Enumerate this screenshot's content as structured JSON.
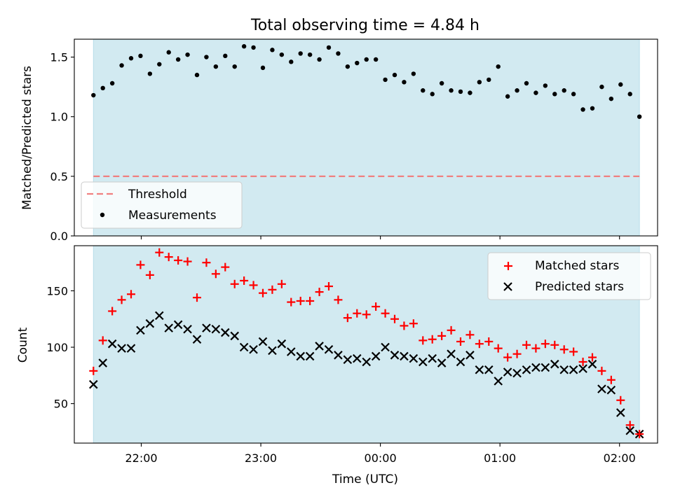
{
  "chart_data": [
    {
      "type": "scatter",
      "title": "Total observing time = 4.84 h",
      "xlabel": "",
      "ylabel": "Matched/Predicted stars",
      "ylim": [
        0,
        1.65
      ],
      "yticks": [
        "0.0",
        "0.5",
        "1.0",
        "1.5"
      ],
      "ytick_values": [
        0.0,
        0.5,
        1.0,
        1.5
      ],
      "shaded_span_color": "#add8e6",
      "threshold": {
        "name": "Threshold",
        "value": 0.5,
        "color": "#f08080"
      },
      "legend": {
        "placement": "lower-left",
        "entries": [
          "Threshold",
          "Measurements"
        ]
      },
      "series": [
        {
          "name": "Measurements",
          "marker": "dot",
          "color": "#000000",
          "values": [
            1.18,
            1.24,
            1.28,
            1.43,
            1.49,
            1.51,
            1.36,
            1.44,
            1.54,
            1.48,
            1.52,
            1.35,
            1.5,
            1.42,
            1.51,
            1.42,
            1.59,
            1.58,
            1.41,
            1.56,
            1.52,
            1.46,
            1.53,
            1.52,
            1.48,
            1.58,
            1.53,
            1.42,
            1.45,
            1.48,
            1.48,
            1.31,
            1.35,
            1.29,
            1.36,
            1.22,
            1.19,
            1.28,
            1.22,
            1.21,
            1.2,
            1.29,
            1.31,
            1.42,
            1.17,
            1.22,
            1.28,
            1.2,
            1.26,
            1.19,
            1.22,
            1.19,
            1.06,
            1.07,
            1.25,
            1.15,
            1.27,
            1.19,
            1.0
          ]
        }
      ]
    },
    {
      "type": "scatter",
      "title": "",
      "xlabel": "Time (UTC)",
      "ylabel": "Count",
      "ylim": [
        15,
        190
      ],
      "yticks": [
        "50",
        "100",
        "150"
      ],
      "ytick_values": [
        50,
        100,
        150
      ],
      "xticks": [
        "22:00",
        "23:00",
        "00:00",
        "01:00",
        "02:00"
      ],
      "x_start": "21:36",
      "x_end": "02:10",
      "sample_count": 59,
      "legend": {
        "placement": "top-right",
        "entries": [
          "Matched stars",
          "Predicted stars"
        ]
      },
      "series": [
        {
          "name": "Matched stars",
          "marker": "plus",
          "color": "#ff0000",
          "values": [
            79,
            106,
            132,
            142,
            147,
            173,
            164,
            184,
            180,
            177,
            176,
            144,
            175,
            165,
            171,
            156,
            159,
            155,
            148,
            151,
            156,
            140,
            141,
            141,
            149,
            154,
            142,
            126,
            130,
            129,
            136,
            130,
            125,
            119,
            121,
            106,
            107,
            110,
            115,
            105,
            111,
            103,
            105,
            99,
            91,
            94,
            102,
            99,
            103,
            102,
            98,
            96,
            87,
            91,
            79,
            71,
            53,
            31,
            23
          ]
        },
        {
          "name": "Predicted stars",
          "marker": "x",
          "color": "#000000",
          "values": [
            67,
            86,
            103,
            99,
            99,
            115,
            121,
            128,
            117,
            120,
            116,
            107,
            117,
            116,
            113,
            110,
            100,
            98,
            105,
            97,
            103,
            96,
            92,
            92,
            101,
            98,
            93,
            89,
            90,
            87,
            92,
            100,
            93,
            92,
            90,
            87,
            90,
            86,
            94,
            87,
            93,
            80,
            80,
            70,
            78,
            77,
            80,
            82,
            82,
            85,
            80,
            80,
            81,
            85,
            63,
            62,
            42,
            26,
            23
          ]
        }
      ]
    }
  ]
}
